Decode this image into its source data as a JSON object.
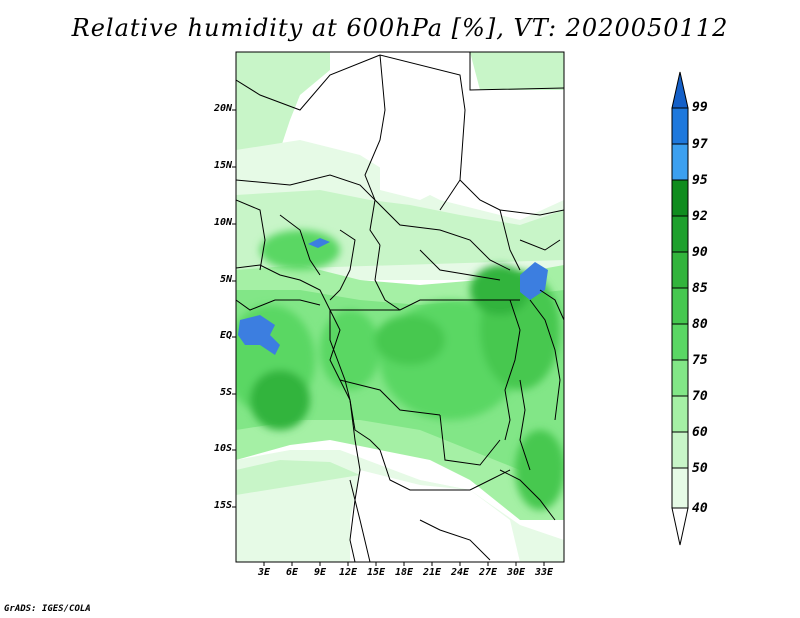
{
  "title": "Relative humidity at 600hPa [%], VT: 2020050112",
  "footer": "GrADS: IGES/COLA",
  "map": {
    "lat_labels": [
      "20N",
      "15N",
      "10N",
      "5N",
      "EQ",
      "5S",
      "10S",
      "15S"
    ],
    "lon_labels": [
      "3E",
      "6E",
      "9E",
      "12E",
      "15E",
      "18E",
      "21E",
      "24E",
      "27E",
      "30E",
      "33E"
    ]
  },
  "colorbar": {
    "labels": [
      "99",
      "97",
      "95",
      "92",
      "90",
      "85",
      "80",
      "75",
      "70",
      "60",
      "50",
      "40"
    ],
    "colors": [
      "#1460c8",
      "#1e78dc",
      "#3ca0f0",
      "#0f8c1e",
      "#1ea02d",
      "#32b43c",
      "#46c850",
      "#5ad764",
      "#82e687",
      "#a5f0a5",
      "#c8f5c8",
      "#e6fae6"
    ]
  },
  "legend_colors": {
    "water": "#3c7ee0",
    "border": "#000000"
  }
}
